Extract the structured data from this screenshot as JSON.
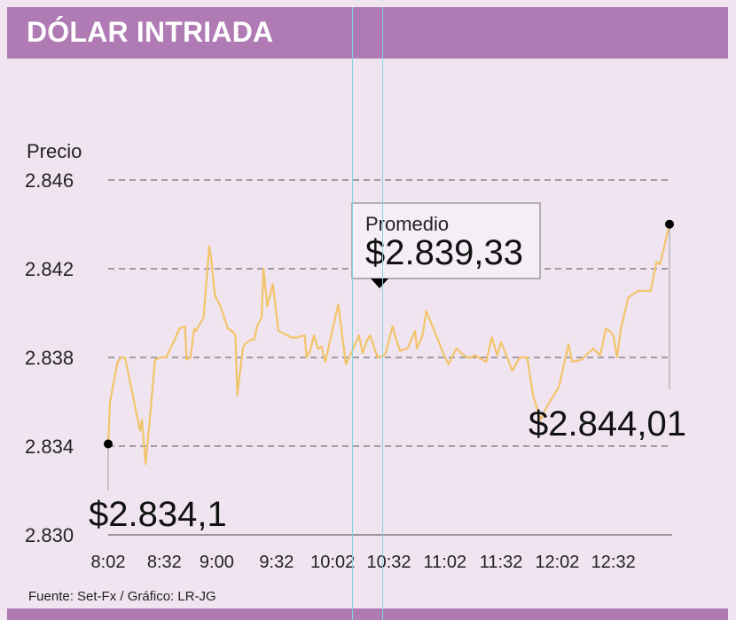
{
  "header": {
    "title": "DÓLAR INTRIADA"
  },
  "footer": {
    "source": "Fuente: Set-Fx / Gráfico: LR-JG"
  },
  "colors": {
    "header_bg": "#b07ab4",
    "panel_bg": "#f0e4f1",
    "line": "#f2c46a",
    "grid": "#555555"
  },
  "chart_data": {
    "type": "line",
    "ylabel": "Precio",
    "ylim": [
      2830,
      2846
    ],
    "yticks": [
      2846,
      2842,
      2838,
      2834,
      2830
    ],
    "ytick_labels": [
      "2.846",
      "2.842",
      "2.838",
      "2.834",
      "2.830"
    ],
    "xlim": [
      "8:02",
      "13:02"
    ],
    "xticks": [
      "8:02",
      "8:32",
      "9:00",
      "9:32",
      "10:02",
      "10:32",
      "11:02",
      "11:32",
      "12:02",
      "12:32"
    ],
    "grid": "horizontal dashed",
    "series": [
      {
        "x": [
          "8:02",
          "8:03",
          "8:07",
          "8:09",
          "8:11",
          "8:19",
          "8:20",
          "8:21",
          "8:22",
          "8:25",
          "8:27",
          "8:30",
          "8:33",
          "8:38",
          "8:40",
          "8:43",
          "8:44",
          "8:46",
          "8:48",
          "8:49",
          "8:53",
          "8:56",
          "8:57",
          "8:59",
          "9:02",
          "9:06",
          "9:08",
          "9:10",
          "9:11",
          "9:14",
          "9:15",
          "9:18",
          "9:20",
          "9:21",
          "9:22",
          "9:24",
          "9:25",
          "9:27",
          "9:30",
          "9:33",
          "9:40",
          "9:43",
          "9:47",
          "9:48",
          "9:50",
          "9:52",
          "9:54",
          "9:56",
          "9:58",
          "10:05",
          "10:09",
          "10:12",
          "10:16",
          "10:18",
          "10:20",
          "10:22",
          "10:26",
          "10:29",
          "10:30",
          "10:34",
          "10:36",
          "10:38",
          "10:42",
          "10:46",
          "10:47",
          "10:50",
          "10:52",
          "11:02",
          "11:04",
          "11:08",
          "11:12",
          "11:14",
          "11:16",
          "11:18",
          "11:20",
          "11:24",
          "11:27",
          "11:30",
          "11:32",
          "11:38",
          "11:40",
          "11:42",
          "11:44",
          "11:46",
          "11:49",
          "11:53",
          "11:56",
          "11:58",
          "12:03",
          "12:08",
          "12:10",
          "12:15",
          "12:21",
          "12:25",
          "12:28",
          "12:30",
          "12:32",
          "12:34",
          "12:36",
          "12:40",
          "12:45",
          "12:49",
          "12:52",
          "12:55",
          "12:57",
          "13:02"
        ],
        "y": [
          2834.1,
          2836.0,
          2837.8,
          2838.0,
          2838.0,
          2834.7,
          2835.2,
          2834.2,
          2833.2,
          2835.9,
          2837.9,
          2838.0,
          2838.0,
          2838.9,
          2839.3,
          2839.4,
          2837.9,
          2838.0,
          2839.3,
          2839.2,
          2839.8,
          2843.0,
          2842.5,
          2840.8,
          2840.3,
          2839.3,
          2839.2,
          2839.0,
          2836.3,
          2838.4,
          2838.6,
          2838.8,
          2838.8,
          2839.2,
          2839.5,
          2839.8,
          2842.0,
          2840.3,
          2841.3,
          2839.2,
          2838.9,
          2838.9,
          2839.0,
          2838.0,
          2838.3,
          2839.0,
          2838.4,
          2838.5,
          2837.8,
          2840.4,
          2837.7,
          2838.2,
          2839.0,
          2838.2,
          2838.7,
          2839.0,
          2838.0,
          2838.1,
          2838.1,
          2839.4,
          2838.8,
          2838.3,
          2838.4,
          2839.2,
          2838.4,
          2839.0,
          2840.1,
          2838.0,
          2837.7,
          2838.4,
          2838.1,
          2838.0,
          2838.0,
          2838.1,
          2838.0,
          2837.8,
          2838.9,
          2838.1,
          2838.7,
          2837.4,
          2837.7,
          2838.0,
          2838.0,
          2838.0,
          2836.3,
          2835.2,
          2835.7,
          2836.0,
          2836.7,
          2838.6,
          2837.8,
          2837.9,
          2838.4,
          2838.1,
          2839.3,
          2839.2,
          2839.0,
          2838.0,
          2839.3,
          2840.7,
          2841.0,
          2841.0,
          2841.0,
          2842.3,
          2842.2,
          2844.01
        ]
      }
    ],
    "annotations": [
      {
        "label": "$2.834,1",
        "x": "8:02",
        "y": 2834.1,
        "position": "below"
      },
      {
        "label": "$2.844,01",
        "x": "13:02",
        "y": 2844.01,
        "position": "below-left"
      },
      {
        "label": "Promedio",
        "value_label": "$2.839,33",
        "x": "10:32",
        "y": 2841.5,
        "position": "callout"
      }
    ]
  }
}
